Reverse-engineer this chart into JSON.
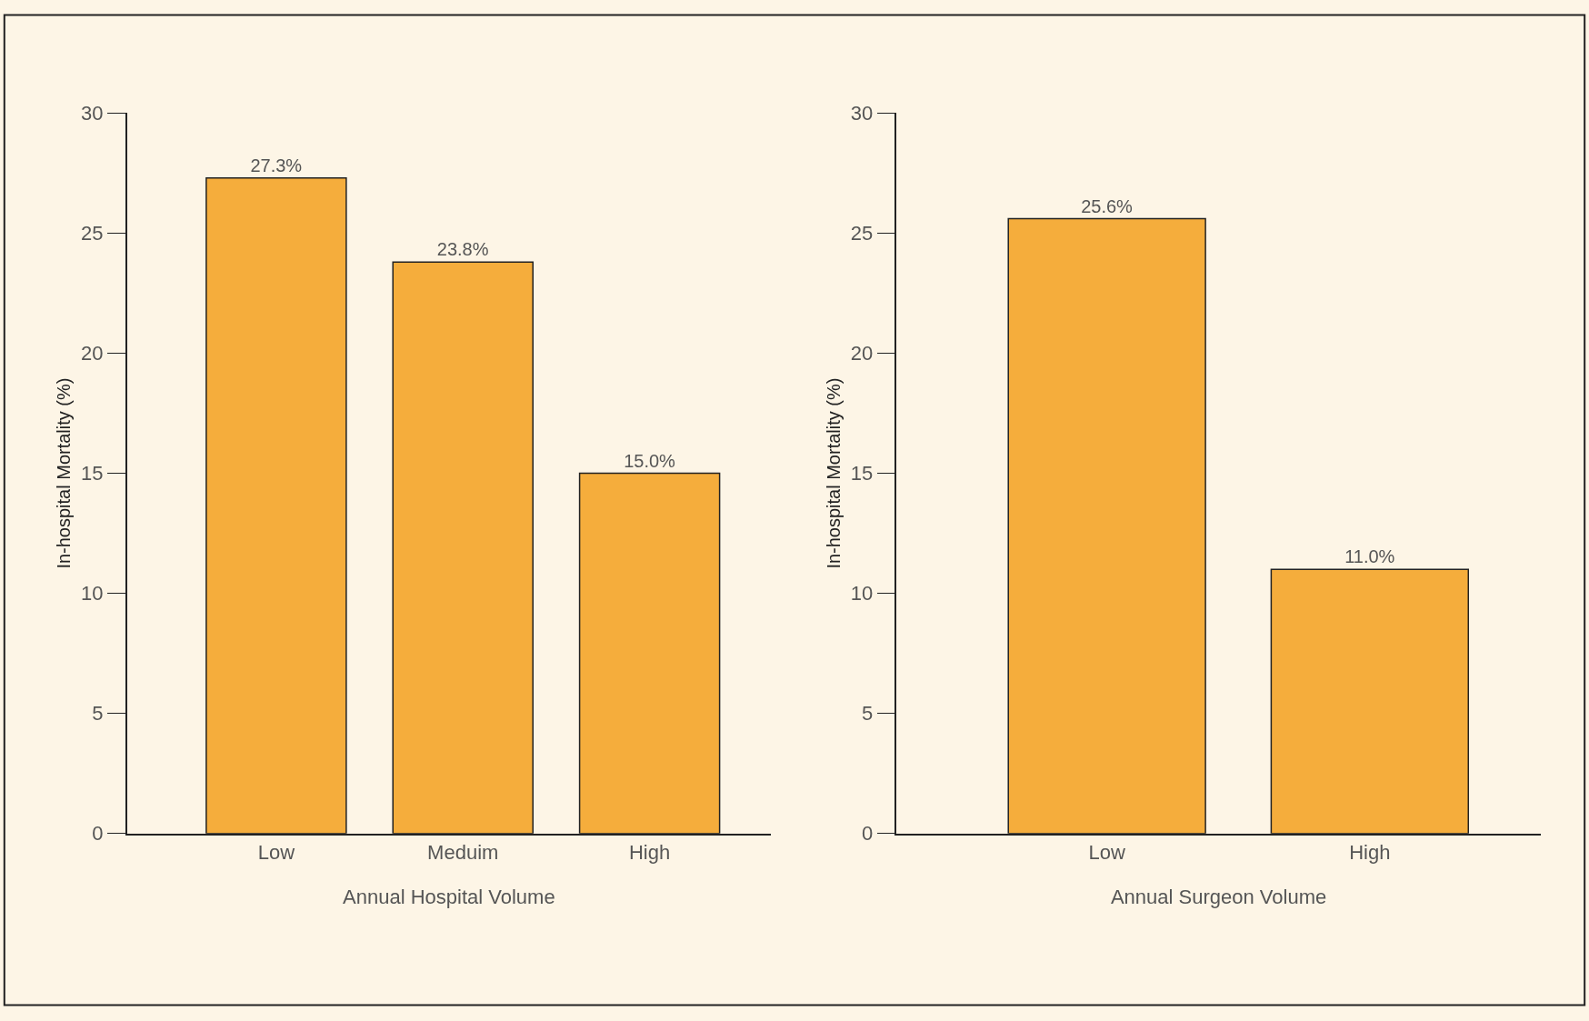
{
  "chart_data": [
    {
      "type": "bar",
      "categories": [
        "Low",
        "Meduim",
        "High"
      ],
      "values": [
        27.3,
        23.8,
        15.0
      ],
      "value_labels": [
        "27.3%",
        "23.8%",
        "15.0%"
      ],
      "color": "#f5ad3c",
      "xlabel": "Annual Hospital Volume",
      "ylabel": "In-hospital Mortality (%)",
      "ylim": [
        0,
        30
      ],
      "yticks": [
        0,
        5,
        10,
        15,
        20,
        25,
        30
      ],
      "grid": false,
      "legend": false
    },
    {
      "type": "bar",
      "categories": [
        "Low",
        "High"
      ],
      "values": [
        25.6,
        11.0
      ],
      "value_labels": [
        "25.6%",
        "11.0%"
      ],
      "color": "#f5ad3c",
      "xlabel": "Annual Surgeon Volume",
      "ylabel": "In-hospital Mortality (%)",
      "ylim": [
        0,
        30
      ],
      "yticks": [
        0,
        5,
        10,
        15,
        20,
        25,
        30
      ],
      "grid": false,
      "legend": false
    }
  ]
}
